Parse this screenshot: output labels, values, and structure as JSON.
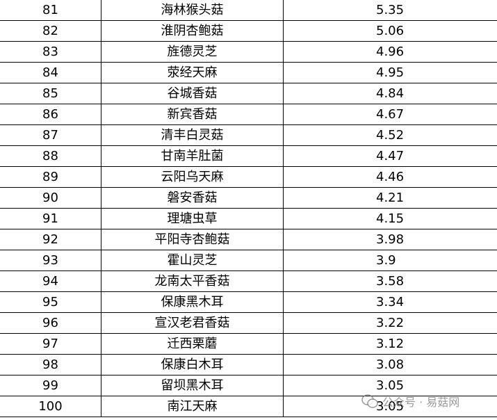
{
  "table": {
    "rows": [
      [
        81,
        "海林猴头菇",
        5.35
      ],
      [
        82,
        "淮阴杏鲍菇",
        5.06
      ],
      [
        83,
        "旌德灵芝",
        4.96
      ],
      [
        84,
        "荥经天麻",
        4.95
      ],
      [
        85,
        "谷城香菇",
        4.84
      ],
      [
        86,
        "新宾香菇",
        4.67
      ],
      [
        87,
        "清丰白灵菇",
        4.52
      ],
      [
        88,
        "甘南羊肚菌",
        4.47
      ],
      [
        89,
        "云阳乌天麻",
        4.46
      ],
      [
        90,
        "磐安香菇",
        4.21
      ],
      [
        91,
        "理塘虫草",
        4.15
      ],
      [
        92,
        "平阳寺杏鲍菇",
        3.98
      ],
      [
        93,
        "霍山灵芝",
        3.9
      ],
      [
        94,
        "龙南太平香菇",
        3.58
      ],
      [
        95,
        "保康黑木耳",
        3.34
      ],
      [
        96,
        "宣汉老君香菇",
        3.22
      ],
      [
        97,
        "迁西栗蘑",
        3.12
      ],
      [
        98,
        "保康白木耳",
        3.08
      ],
      [
        99,
        "留坝黑木耳",
        3.05
      ],
      [
        100,
        "南江天麻",
        3.05
      ]
    ]
  },
  "watermark": "公众号 · 易菇网"
}
